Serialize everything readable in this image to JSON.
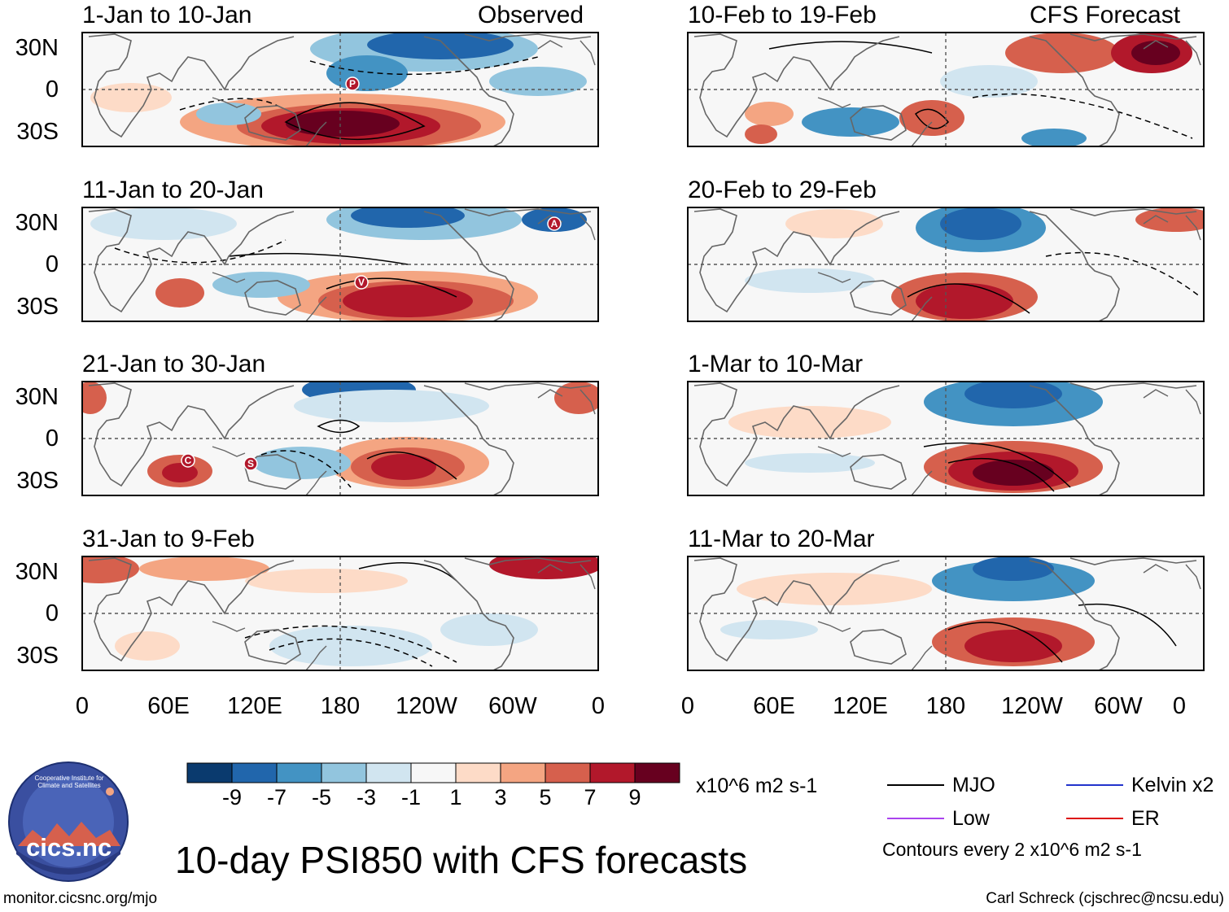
{
  "main_title": "10-day PSI850 with CFS forecasts",
  "panels_left": [
    {
      "period": "1-Jan to 10-Jan",
      "tag": "Observed"
    },
    {
      "period": "11-Jan to 20-Jan",
      "tag": ""
    },
    {
      "period": "21-Jan to 30-Jan",
      "tag": ""
    },
    {
      "period": "31-Jan to 9-Feb",
      "tag": ""
    }
  ],
  "panels_right": [
    {
      "period": "10-Feb to 19-Feb",
      "tag": "CFS Forecast"
    },
    {
      "period": "20-Feb to 29-Feb",
      "tag": ""
    },
    {
      "period": "1-Mar to 10-Mar",
      "tag": ""
    },
    {
      "period": "11-Mar to 20-Mar",
      "tag": ""
    }
  ],
  "lat_labels": [
    "30N",
    "0",
    "30S"
  ],
  "lon_labels": [
    "0",
    "60E",
    "120E",
    "180",
    "120W",
    "60W",
    "0"
  ],
  "markers": [
    "P",
    "A",
    "V",
    "C",
    "S"
  ],
  "colorbar": {
    "ticks": [
      "-9",
      "-7",
      "-5",
      "-3",
      "-1",
      "1",
      "3",
      "5",
      "7",
      "9"
    ],
    "colors": [
      "#0a3a6e",
      "#2166ac",
      "#4393c3",
      "#92c5de",
      "#d1e5f0",
      "#f7f7f7",
      "#fddbc7",
      "#f4a582",
      "#d6604d",
      "#b2182b",
      "#67001f"
    ],
    "units": "x10^6 m2 s-1"
  },
  "legend": {
    "items": [
      {
        "label": "MJO",
        "color": "#000000"
      },
      {
        "label": "Kelvin x2",
        "color": "#2233cc"
      },
      {
        "label": "Low",
        "color": "#aa44ee"
      },
      {
        "label": "ER",
        "color": "#dd1111"
      }
    ],
    "note": "Contours every 2 x10^6 m2 s-1"
  },
  "logo_text": "cics.nc",
  "logo_ring_text": "Cooperative Institute for Climate and Satellites",
  "footer_left": "monitor.cicsnc.org/mjo",
  "footer_right": "Carl Schreck (cjschrec@ncsu.edu)"
}
